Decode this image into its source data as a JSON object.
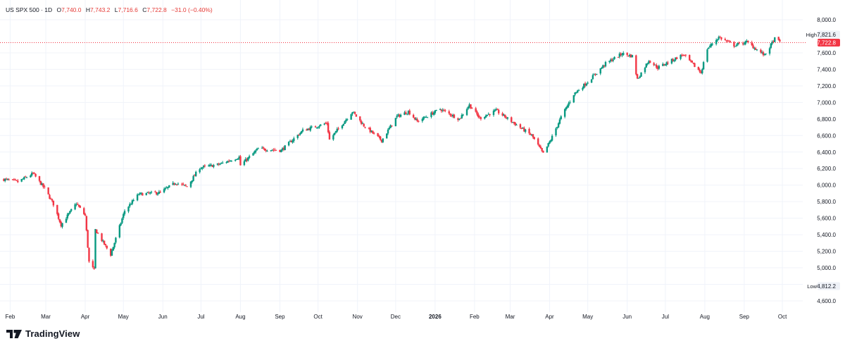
{
  "header": {
    "symbol": "US SPX 500 · 1D",
    "o_label": "O",
    "o_value": "7,740.0",
    "h_label": "H",
    "h_value": "7,743.2",
    "l_label": "L",
    "l_value": "7,716.6",
    "c_label": "C",
    "c_value": "7,722.8",
    "change": "−31.0 (−0.40%)"
  },
  "brand": {
    "name": "TradingView",
    "logo_icon": "tradingview-logo-icon"
  },
  "colors": {
    "up": "#089981",
    "down": "#f23645",
    "price_line": "#f23645",
    "grid": "#f0f3fa",
    "text": "#131722"
  },
  "chart_data": {
    "type": "candlestick",
    "title": "US SPX 500 · 1D",
    "ylim": [
      4500,
      8100
    ],
    "y_ticks": [
      "4,600.0",
      "4,800.0",
      "5,000.0",
      "5,200.0",
      "5,400.0",
      "5,600.0",
      "5,800.0",
      "6,000.0",
      "6,200.0",
      "6,400.0",
      "6,600.0",
      "6,800.0",
      "7,000.0",
      "7,200.0",
      "7,400.0",
      "7,600.0",
      "8,000.0"
    ],
    "x_labels": [
      "Feb",
      "Mar",
      "Apr",
      "May",
      "Jun",
      "Jul",
      "Aug",
      "Sep",
      "Oct",
      "Nov",
      "Dec",
      "2026",
      "Feb",
      "Mar",
      "Apr",
      "May",
      "Jun",
      "Jul",
      "Aug",
      "Sep",
      "Oct"
    ],
    "grid": true,
    "last_price": {
      "value": 7722.8,
      "label": "7,722.8"
    },
    "high": {
      "label": "High",
      "value": "7,821.6"
    },
    "low": {
      "label": "Low",
      "value": "4,812.2"
    },
    "close_path": [
      [
        "2025-01-27",
        6070
      ],
      [
        "2025-02-07",
        6040
      ],
      [
        "2025-02-19",
        6140
      ],
      [
        "2025-02-28",
        5960
      ],
      [
        "2025-03-07",
        5770
      ],
      [
        "2025-03-13",
        5520
      ],
      [
        "2025-03-25",
        5780
      ],
      [
        "2025-04-01",
        5630
      ],
      [
        "2025-04-04",
        5070
      ],
      [
        "2025-04-08",
        4970
      ],
      [
        "2025-04-09",
        5460
      ],
      [
        "2025-04-21",
        5160
      ],
      [
        "2025-05-02",
        5690
      ],
      [
        "2025-05-13",
        5890
      ],
      [
        "2025-05-30",
        5910
      ],
      [
        "2025-06-11",
        6030
      ],
      [
        "2025-06-20",
        5980
      ],
      [
        "2025-06-30",
        6210
      ],
      [
        "2025-07-15",
        6250
      ],
      [
        "2025-07-31",
        6340
      ],
      [
        "2025-08-01",
        6240
      ],
      [
        "2025-08-15",
        6440
      ],
      [
        "2025-09-02",
        6420
      ],
      [
        "2025-09-19",
        6660
      ],
      [
        "2025-10-08",
        6750
      ],
      [
        "2025-10-10",
        6550
      ],
      [
        "2025-10-28",
        6890
      ],
      [
        "2025-11-06",
        6720
      ],
      [
        "2025-11-20",
        6540
      ],
      [
        "2025-12-02",
        6830
      ],
      [
        "2025-12-11",
        6890
      ],
      [
        "2025-12-18",
        6770
      ],
      [
        "2026-01-05",
        6920
      ],
      [
        "2026-01-20",
        6800
      ],
      [
        "2026-01-28",
        6970
      ],
      [
        "2026-02-05",
        6810
      ],
      [
        "2026-02-18",
        6900
      ],
      [
        "2026-03-05",
        6740
      ],
      [
        "2026-03-18",
        6600
      ],
      [
        "2026-03-27",
        6380
      ],
      [
        "2026-04-02",
        6550
      ],
      [
        "2026-04-10",
        6820
      ],
      [
        "2026-04-20",
        7100
      ],
      [
        "2026-05-01",
        7250
      ],
      [
        "2026-05-15",
        7470
      ],
      [
        "2026-05-28",
        7590
      ],
      [
        "2026-06-05",
        7560
      ],
      [
        "2026-06-09",
        7280
      ],
      [
        "2026-06-18",
        7510
      ],
      [
        "2026-06-25",
        7420
      ],
      [
        "2026-07-15",
        7580
      ],
      [
        "2026-07-29",
        7360
      ],
      [
        "2026-08-03",
        7650
      ],
      [
        "2026-08-12",
        7790
      ],
      [
        "2026-08-24",
        7690
      ],
      [
        "2026-09-03",
        7730
      ],
      [
        "2026-09-17",
        7570
      ],
      [
        "2026-09-25",
        7770
      ],
      [
        "2026-09-30",
        7722.8
      ]
    ]
  }
}
